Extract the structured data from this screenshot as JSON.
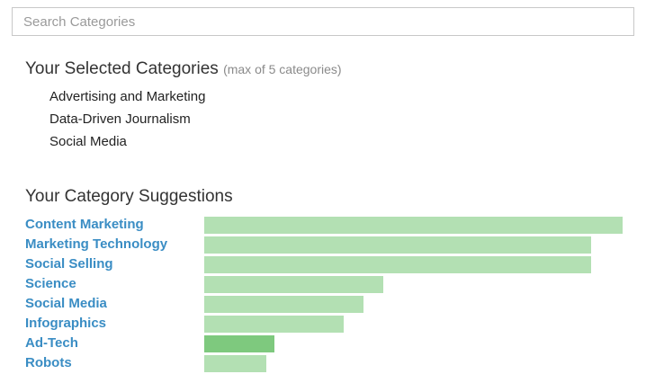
{
  "search": {
    "placeholder": "Search Categories",
    "value": ""
  },
  "selected": {
    "heading": "Your Selected Categories",
    "note": "(max of 5 categories)",
    "items": [
      "Advertising and Marketing",
      "Data-Driven Journalism",
      "Social Media"
    ]
  },
  "suggestions": {
    "heading": "Your Category Suggestions",
    "colors": {
      "bar": "#b3e0b3",
      "bar_highlight": "#7ec97e",
      "link": "#3a8dc4"
    },
    "items": [
      {
        "label": "Content Marketing",
        "relevance": 1.0,
        "highlighted": false
      },
      {
        "label": "Marketing Technology",
        "relevance": 0.925,
        "highlighted": false
      },
      {
        "label": "Social Selling",
        "relevance": 0.925,
        "highlighted": false
      },
      {
        "label": "Science",
        "relevance": 0.427,
        "highlighted": false
      },
      {
        "label": "Social Media",
        "relevance": 0.381,
        "highlighted": false
      },
      {
        "label": "Infographics",
        "relevance": 0.333,
        "highlighted": false
      },
      {
        "label": "Ad-Tech",
        "relevance": 0.168,
        "highlighted": true
      },
      {
        "label": "Robots",
        "relevance": 0.149,
        "highlighted": false
      }
    ]
  }
}
